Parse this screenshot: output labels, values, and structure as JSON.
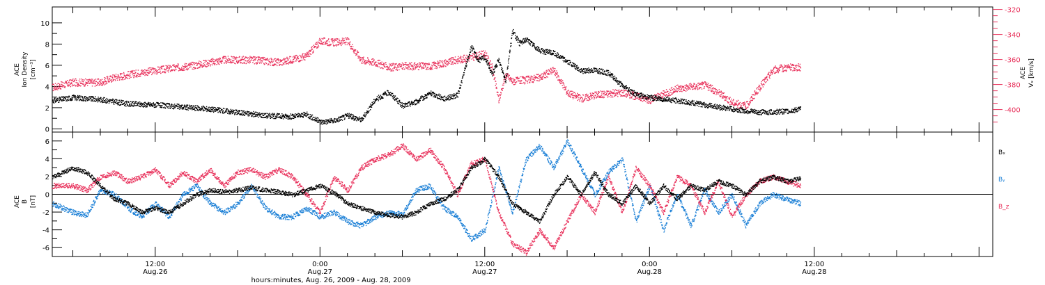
{
  "colors": {
    "black": "#000000",
    "blue": "#1a7fd6",
    "red": "#e8315b"
  },
  "chart_data": [
    {
      "type": "scatter",
      "panel": "top",
      "ylabel_left": [
        "ACE",
        "Ion Density",
        "[cm⁻³]"
      ],
      "ylabel_right": [
        "ACE",
        "Vₓ [km/s]"
      ],
      "ylim_left": [
        -0.3,
        11.5
      ],
      "yticks_left": [
        "0",
        "2",
        "4",
        "6",
        "8",
        "10"
      ],
      "ylim_right": [
        -418,
        -318
      ],
      "yticks_right": [
        "-320",
        "-340",
        "-360",
        "-380",
        "-400"
      ],
      "x_unit": "hours since Aug.26 00:00",
      "xlim": [
        4.5,
        73.0
      ],
      "series": [
        {
          "name": "Ion Density",
          "color": "#000000",
          "axis": "left",
          "x": [
            4.5,
            6,
            8,
            10,
            12,
            14,
            16,
            18,
            20,
            22,
            23,
            24,
            25,
            26,
            27,
            28,
            29,
            30,
            31,
            32,
            33,
            34,
            35,
            35.5,
            36,
            36.5,
            37,
            37.5,
            38,
            38.5,
            39,
            40,
            41,
            42,
            43,
            44,
            45,
            46,
            47,
            48,
            50,
            52,
            54,
            56,
            58,
            59
          ],
          "y": [
            2.7,
            3.0,
            2.8,
            2.4,
            2.3,
            2.1,
            1.9,
            1.6,
            1.3,
            1.2,
            1.4,
            0.7,
            0.8,
            1.3,
            0.9,
            2.8,
            3.5,
            2.2,
            2.6,
            3.4,
            2.9,
            3.2,
            7.8,
            6.5,
            6.8,
            5.2,
            6.5,
            4.6,
            9.3,
            8.1,
            8.5,
            7.4,
            7.2,
            6.4,
            5.5,
            5.6,
            5.3,
            4.1,
            3.3,
            3.0,
            2.7,
            2.3,
            1.9,
            1.6,
            1.7,
            1.9
          ]
        },
        {
          "name": "Vx",
          "color": "#e8315b",
          "axis": "right",
          "x": [
            4.5,
            6,
            8,
            9,
            11,
            13,
            15,
            17,
            19,
            21,
            23,
            24,
            25,
            26,
            27,
            28,
            29,
            30,
            32,
            34,
            35,
            36,
            36.5,
            37,
            37.5,
            38,
            39,
            40,
            41,
            42,
            43,
            44,
            46,
            48,
            50,
            52,
            53,
            54,
            55,
            56,
            57,
            58,
            59
          ],
          "y": [
            -382,
            -378,
            -378,
            -374,
            -370,
            -367,
            -364,
            -360,
            -360,
            -362,
            -357,
            -345,
            -346,
            -345,
            -360,
            -362,
            -366,
            -365,
            -365,
            -360,
            -358,
            -355,
            -366,
            -392,
            -372,
            -377,
            -376,
            -374,
            -368,
            -386,
            -391,
            -388,
            -386,
            -392,
            -383,
            -380,
            -386,
            -394,
            -397,
            -382,
            -368,
            -366,
            -366
          ]
        }
      ]
    },
    {
      "type": "scatter",
      "panel": "bottom",
      "ylabel_left": [
        "ACE",
        "B",
        "[nT]"
      ],
      "ylim": [
        -7,
        7
      ],
      "yticks": [
        "-6",
        "-4",
        "-2",
        "0",
        "2",
        "4",
        "6"
      ],
      "x_unit": "hours since Aug.26 00:00",
      "xlim": [
        4.5,
        73.0
      ],
      "legend": {
        "position": "right",
        "entries": [
          "Bₓ",
          "Bᵧ",
          "B_z"
        ]
      },
      "series": [
        {
          "name": "Bx",
          "color": "#000000",
          "x": [
            4.5,
            6,
            7,
            8,
            9,
            10,
            11,
            12,
            13,
            14,
            15,
            16,
            17,
            18,
            19,
            20,
            21,
            22,
            23,
            24,
            25,
            26,
            27,
            28,
            29,
            30,
            31,
            32,
            33,
            34,
            35,
            36,
            37,
            38,
            39,
            40,
            41,
            42,
            43,
            44,
            45,
            46,
            47,
            48,
            49,
            50,
            51,
            52,
            53,
            54,
            55,
            56,
            57,
            58,
            59
          ],
          "y": [
            2.0,
            3.0,
            2.5,
            1.0,
            -0.5,
            -1.0,
            -2.0,
            -1.5,
            -2.0,
            -1.0,
            0.0,
            0.5,
            0.3,
            0.5,
            0.8,
            0.5,
            0.3,
            0.0,
            0.5,
            1.0,
            0.2,
            -1.0,
            -1.5,
            -2.0,
            -2.3,
            -2.5,
            -2.0,
            -1.0,
            -0.5,
            0.5,
            3.0,
            4.0,
            2.0,
            -1.0,
            -2.0,
            -3.0,
            0.0,
            2.0,
            0.0,
            2.5,
            0.0,
            -1.0,
            1.0,
            -1.0,
            1.0,
            -0.5,
            1.0,
            0.5,
            1.5,
            1.0,
            0.0,
            1.5,
            2.0,
            1.5,
            1.8
          ]
        },
        {
          "name": "By",
          "color": "#1a7fd6",
          "x": [
            4.5,
            6,
            7,
            8,
            9,
            10,
            11,
            12,
            13,
            14,
            15,
            16,
            17,
            18,
            19,
            20,
            21,
            22,
            23,
            24,
            25,
            26,
            27,
            28,
            29,
            30,
            31,
            32,
            33,
            34,
            35,
            36,
            37,
            38,
            39,
            40,
            41,
            42,
            43,
            44,
            45,
            46,
            47,
            48,
            49,
            50,
            51,
            52,
            53,
            54,
            55,
            56,
            57,
            58,
            59
          ],
          "y": [
            -1.0,
            -2.0,
            -2.3,
            0.5,
            0.0,
            -1.5,
            -2.5,
            -1.0,
            -2.5,
            0.0,
            1.0,
            -1.0,
            -2.0,
            -1.0,
            1.0,
            -1.5,
            -2.5,
            -2.5,
            -1.5,
            -2.5,
            -2.0,
            -3.0,
            -3.5,
            -2.5,
            -2.0,
            -2.2,
            0.5,
            1.0,
            -1.5,
            -2.5,
            -5.0,
            -4.0,
            3.0,
            -2.0,
            4.0,
            5.5,
            3.0,
            6.0,
            3.0,
            0.0,
            2.5,
            4.0,
            -3.0,
            1.0,
            -4.0,
            0.0,
            -3.5,
            0.5,
            -2.0,
            0.0,
            -3.5,
            -1.0,
            0.0,
            -0.5,
            -1.0
          ]
        },
        {
          "name": "Bz",
          "color": "#e8315b",
          "x": [
            4.5,
            6,
            7,
            8,
            9,
            10,
            11,
            12,
            13,
            14,
            15,
            16,
            17,
            18,
            19,
            20,
            21,
            22,
            23,
            24,
            25,
            26,
            27,
            28,
            29,
            30,
            31,
            32,
            33,
            34,
            35,
            36,
            37,
            38,
            39,
            40,
            41,
            42,
            43,
            44,
            45,
            46,
            47,
            48,
            49,
            50,
            51,
            52,
            53,
            54,
            55,
            56,
            57,
            58,
            59
          ],
          "y": [
            1.0,
            1.0,
            0.5,
            2.0,
            2.5,
            1.5,
            2.0,
            2.8,
            1.0,
            2.5,
            1.5,
            2.8,
            1.0,
            2.5,
            2.8,
            2.0,
            2.8,
            2.0,
            0.0,
            -2.0,
            2.0,
            0.5,
            3.0,
            4.0,
            4.5,
            5.5,
            4.0,
            5.0,
            3.0,
            0.0,
            3.5,
            4.0,
            -2.0,
            -5.5,
            -6.5,
            -4.0,
            -6.0,
            -3.0,
            0.0,
            -2.0,
            2.0,
            -2.0,
            3.0,
            1.0,
            -2.0,
            2.0,
            1.0,
            -2.0,
            1.5,
            -2.5,
            0.0,
            1.5,
            2.0,
            1.5,
            1.0
          ]
        }
      ]
    }
  ],
  "x_axis": {
    "ticks": [
      {
        "hours": 12,
        "time": "12:00",
        "date": "Aug.26"
      },
      {
        "hours": 24,
        "time": "0:00",
        "date": "Aug.27"
      },
      {
        "hours": 36,
        "time": "12:00",
        "date": "Aug.27"
      },
      {
        "hours": 48,
        "time": "0:00",
        "date": "Aug.28"
      },
      {
        "hours": 60,
        "time": "12:00",
        "date": "Aug.28"
      }
    ],
    "label": "hours:minutes, Aug. 26, 2009 - Aug. 28, 2009"
  }
}
